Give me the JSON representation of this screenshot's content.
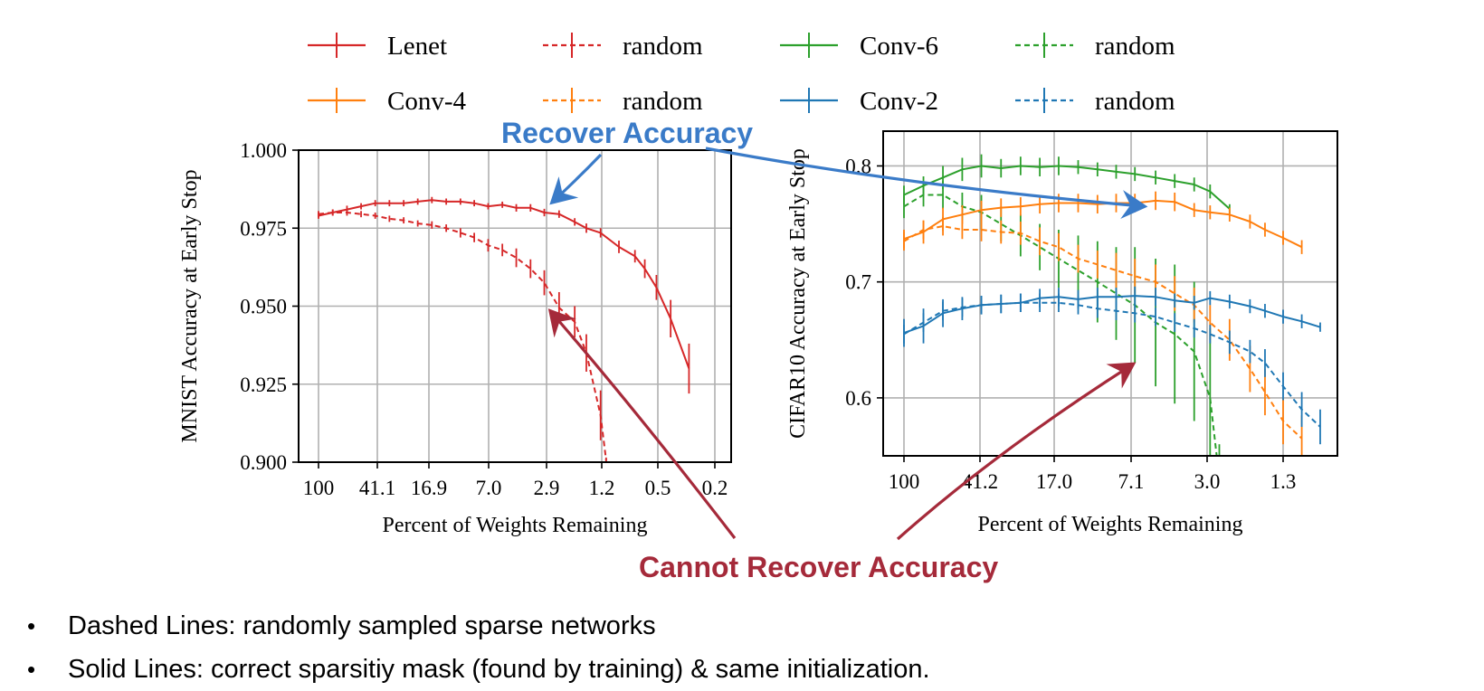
{
  "legend": {
    "entries": [
      {
        "label": "Lenet",
        "color": "#d62728",
        "dashed": false
      },
      {
        "label": "random",
        "color": "#d62728",
        "dashed": true
      },
      {
        "label": "Conv-6",
        "color": "#2ca02c",
        "dashed": false
      },
      {
        "label": "random",
        "color": "#2ca02c",
        "dashed": true
      },
      {
        "label": "Conv-4",
        "color": "#ff7f0e",
        "dashed": false
      },
      {
        "label": "random",
        "color": "#ff7f0e",
        "dashed": true
      },
      {
        "label": "Conv-2",
        "color": "#1f77b4",
        "dashed": false
      },
      {
        "label": "random",
        "color": "#1f77b4",
        "dashed": true
      }
    ]
  },
  "annotations": {
    "recover": {
      "text": "Recover Accuracy",
      "color": "#3a7bc8"
    },
    "cannot": {
      "text": "Cannot Recover Accuracy",
      "color": "#a52a3a"
    }
  },
  "bullets": [
    "Dashed Lines: randomly sampled sparse networks",
    "Solid Lines: correct sparsitiy mask (found by training) & same initialization."
  ],
  "chart_data": [
    {
      "type": "line",
      "xlabel": "Percent of Weights Remaining",
      "ylabel": "MNIST Accuracy at Early Stop",
      "x_scale": "log-reversed",
      "xlim": [
        100,
        0.15
      ],
      "ylim": [
        0.9,
        1.0
      ],
      "xticks": [
        "100",
        "41.1",
        "16.9",
        "7.0",
        "2.9",
        "1.2",
        "0.5",
        "0.2"
      ],
      "yticks": [
        "0.900",
        "0.925",
        "0.950",
        "0.975",
        "1.000"
      ],
      "grid": true,
      "series": [
        {
          "name": "Lenet",
          "color": "#d62728",
          "dashed": false,
          "x": [
            100,
            80,
            64,
            51.3,
            41.1,
            32.9,
            26.3,
            21.1,
            16.9,
            13.5,
            10.8,
            8.7,
            7.0,
            5.6,
            4.5,
            3.6,
            2.9,
            2.3,
            1.8,
            1.5,
            1.2,
            0.9,
            0.7,
            0.6,
            0.5,
            0.4,
            0.3
          ],
          "y": [
            0.979,
            0.98,
            0.981,
            0.982,
            0.983,
            0.983,
            0.983,
            0.9835,
            0.984,
            0.9835,
            0.9835,
            0.983,
            0.982,
            0.9825,
            0.9815,
            0.9815,
            0.98,
            0.9795,
            0.977,
            0.975,
            0.9735,
            0.969,
            0.966,
            0.962,
            0.956,
            0.946,
            0.93
          ],
          "err": [
            0.001,
            0.001,
            0.0012,
            0.001,
            0.001,
            0.001,
            0.001,
            0.001,
            0.001,
            0.001,
            0.001,
            0.001,
            0.001,
            0.001,
            0.0012,
            0.0012,
            0.0012,
            0.0012,
            0.0012,
            0.0015,
            0.0015,
            0.002,
            0.002,
            0.003,
            0.004,
            0.006,
            0.008
          ]
        },
        {
          "name": "random",
          "color": "#d62728",
          "dashed": true,
          "x": [
            100,
            80,
            64,
            51.3,
            41.1,
            32.9,
            26.3,
            21.1,
            16.9,
            13.5,
            10.8,
            8.7,
            7.0,
            5.6,
            4.5,
            3.6,
            2.9,
            2.3,
            1.8,
            1.5,
            1.2,
            1.1
          ],
          "y": [
            0.9795,
            0.98,
            0.98,
            0.9795,
            0.979,
            0.978,
            0.9775,
            0.9765,
            0.976,
            0.975,
            0.9735,
            0.972,
            0.9695,
            0.968,
            0.9655,
            0.962,
            0.9575,
            0.9495,
            0.945,
            0.935,
            0.915,
            0.9005
          ],
          "err": [
            0.001,
            0.001,
            0.001,
            0.001,
            0.001,
            0.001,
            0.001,
            0.001,
            0.0012,
            0.0012,
            0.0015,
            0.0015,
            0.002,
            0.002,
            0.003,
            0.003,
            0.004,
            0.005,
            0.005,
            0.006,
            0.008,
            0.001
          ]
        }
      ]
    },
    {
      "type": "line",
      "xlabel": "Percent of Weights Remaining",
      "ylabel": "CIFAR10 Accuracy at Early Stop",
      "x_scale": "log-reversed",
      "xlim": [
        100,
        0.8
      ],
      "ylim": [
        0.55,
        0.83
      ],
      "xticks": [
        "100",
        "41.2",
        "17.0",
        "7.1",
        "3.0",
        "1.3"
      ],
      "yticks": [
        "0.6",
        "0.7",
        "0.8"
      ],
      "grid": true,
      "series": [
        {
          "name": "Conv-6",
          "color": "#2ca02c",
          "dashed": false,
          "x": [
            100,
            80,
            64,
            51.3,
            41.2,
            32.9,
            26.3,
            21.1,
            17.0,
            13.6,
            10.9,
            8.8,
            7.1,
            5.6,
            4.5,
            3.6,
            3.0,
            2.4
          ],
          "y": [
            0.775,
            0.783,
            0.79,
            0.797,
            0.8,
            0.798,
            0.8,
            0.799,
            0.8,
            0.799,
            0.797,
            0.795,
            0.793,
            0.79,
            0.787,
            0.784,
            0.778,
            0.763
          ],
          "err": [
            0.008,
            0.008,
            0.01,
            0.01,
            0.01,
            0.008,
            0.008,
            0.008,
            0.008,
            0.006,
            0.006,
            0.006,
            0.006,
            0.006,
            0.006,
            0.006,
            0.006,
            0.004
          ]
        },
        {
          "name": "random",
          "color": "#2ca02c",
          "dashed": true,
          "x": [
            100,
            80,
            64,
            51.3,
            41.2,
            32.9,
            26.3,
            21.1,
            17.0,
            13.6,
            10.9,
            8.8,
            7.1,
            5.6,
            4.5,
            3.6,
            3.0,
            2.7
          ],
          "y": [
            0.765,
            0.775,
            0.775,
            0.765,
            0.76,
            0.75,
            0.74,
            0.73,
            0.72,
            0.71,
            0.7,
            0.69,
            0.68,
            0.665,
            0.655,
            0.64,
            0.6,
            0.53
          ],
          "err": [
            0.01,
            0.01,
            0.012,
            0.012,
            0.015,
            0.015,
            0.018,
            0.02,
            0.025,
            0.03,
            0.035,
            0.04,
            0.05,
            0.055,
            0.06,
            0.06,
            0.06,
            0.03
          ]
        },
        {
          "name": "Conv-4",
          "color": "#ff7f0e",
          "dashed": false,
          "x": [
            100,
            80,
            64,
            51.3,
            41.2,
            32.9,
            26.3,
            21.1,
            17.0,
            13.6,
            10.9,
            8.8,
            7.1,
            5.6,
            4.5,
            3.6,
            3.0,
            2.4,
            1.9,
            1.6,
            1.3,
            1.05
          ],
          "y": [
            0.737,
            0.743,
            0.754,
            0.758,
            0.762,
            0.764,
            0.765,
            0.767,
            0.768,
            0.768,
            0.767,
            0.768,
            0.768,
            0.77,
            0.769,
            0.762,
            0.76,
            0.758,
            0.752,
            0.745,
            0.738,
            0.73
          ],
          "err": [
            0.008,
            0.01,
            0.01,
            0.008,
            0.008,
            0.008,
            0.008,
            0.008,
            0.008,
            0.008,
            0.008,
            0.008,
            0.008,
            0.008,
            0.008,
            0.006,
            0.006,
            0.006,
            0.006,
            0.006,
            0.006,
            0.006
          ]
        },
        {
          "name": "random",
          "color": "#ff7f0e",
          "dashed": true,
          "x": [
            100,
            80,
            64,
            51.3,
            41.2,
            32.9,
            26.3,
            21.1,
            17.0,
            13.6,
            10.9,
            8.8,
            7.1,
            5.6,
            4.5,
            3.6,
            3.0,
            2.4,
            1.9,
            1.6,
            1.3,
            1.05
          ],
          "y": [
            0.735,
            0.745,
            0.748,
            0.745,
            0.745,
            0.743,
            0.742,
            0.735,
            0.73,
            0.72,
            0.715,
            0.71,
            0.705,
            0.7,
            0.69,
            0.68,
            0.665,
            0.65,
            0.625,
            0.605,
            0.58,
            0.565
          ],
          "err": [
            0.008,
            0.008,
            0.008,
            0.008,
            0.01,
            0.01,
            0.01,
            0.012,
            0.012,
            0.012,
            0.012,
            0.015,
            0.015,
            0.015,
            0.015,
            0.015,
            0.015,
            0.018,
            0.02,
            0.02,
            0.02,
            0.02
          ]
        },
        {
          "name": "Conv-2",
          "color": "#1f77b4",
          "dashed": false,
          "x": [
            100,
            80,
            64,
            51.3,
            41.2,
            32.9,
            26.3,
            21.1,
            17.0,
            13.6,
            10.9,
            8.8,
            7.1,
            5.6,
            4.5,
            3.6,
            3.0,
            2.4,
            1.9,
            1.6,
            1.3,
            1.05,
            0.85
          ],
          "y": [
            0.656,
            0.662,
            0.673,
            0.677,
            0.68,
            0.681,
            0.682,
            0.686,
            0.687,
            0.685,
            0.687,
            0.687,
            0.688,
            0.687,
            0.684,
            0.682,
            0.686,
            0.683,
            0.679,
            0.675,
            0.67,
            0.666,
            0.661
          ],
          "err": [
            0.012,
            0.015,
            0.012,
            0.01,
            0.008,
            0.008,
            0.008,
            0.008,
            0.008,
            0.008,
            0.008,
            0.008,
            0.008,
            0.008,
            0.006,
            0.006,
            0.006,
            0.006,
            0.006,
            0.006,
            0.006,
            0.006,
            0.004
          ]
        },
        {
          "name": "random",
          "color": "#1f77b4",
          "dashed": true,
          "x": [
            100,
            80,
            64,
            51.3,
            41.2,
            32.9,
            26.3,
            21.1,
            17.0,
            13.6,
            10.9,
            8.8,
            7.1,
            5.6,
            4.5,
            3.6,
            3.0,
            2.4,
            1.9,
            1.6,
            1.3,
            1.05,
            0.85
          ],
          "y": [
            0.655,
            0.665,
            0.675,
            0.678,
            0.68,
            0.681,
            0.682,
            0.682,
            0.682,
            0.68,
            0.677,
            0.675,
            0.673,
            0.67,
            0.665,
            0.66,
            0.655,
            0.648,
            0.64,
            0.63,
            0.61,
            0.59,
            0.575
          ],
          "err": [
            0.008,
            0.008,
            0.008,
            0.008,
            0.008,
            0.008,
            0.008,
            0.008,
            0.008,
            0.008,
            0.008,
            0.008,
            0.008,
            0.008,
            0.008,
            0.008,
            0.008,
            0.01,
            0.01,
            0.012,
            0.012,
            0.015,
            0.015
          ]
        }
      ]
    }
  ]
}
